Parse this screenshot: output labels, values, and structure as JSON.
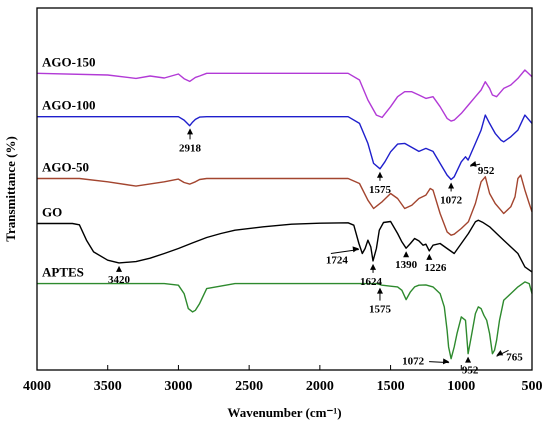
{
  "chart_data": {
    "type": "line",
    "xlabel": "Wavenumber (cm⁻¹)",
    "ylabel": "Transmittance (%)",
    "xlim": [
      4000,
      500
    ],
    "x_reversed": true,
    "x_ticks": [
      4000,
      3500,
      3000,
      2500,
      2000,
      1500,
      1000,
      500
    ],
    "x_tick_labels": [
      "4000",
      "3500",
      "3000",
      "2500",
      "2000",
      "1500",
      "1000",
      "500"
    ],
    "y_ticks_shown": false,
    "legend": "inline labels",
    "series": [
      {
        "name": "AGO-150",
        "color": "#b23ad6",
        "x": [
          4000,
          3500,
          3300,
          3200,
          3100,
          3000,
          2960,
          2920,
          2880,
          2850,
          2800,
          2600,
          2200,
          1800,
          1720,
          1660,
          1600,
          1560,
          1500,
          1450,
          1400,
          1350,
          1300,
          1250,
          1200,
          1150,
          1100,
          1072,
          1050,
          1000,
          950,
          900,
          860,
          830,
          800,
          780,
          750,
          720,
          700,
          650,
          600,
          550,
          500
        ],
        "y": [
          68,
          67.5,
          66.5,
          67.2,
          66.6,
          67.8,
          66.4,
          65.6,
          66.8,
          67.2,
          68,
          68,
          68,
          68,
          66,
          60,
          55.5,
          54.8,
          58,
          61,
          62.5,
          62.5,
          61.5,
          60.5,
          61,
          58,
          54.5,
          53.7,
          54,
          56,
          58.5,
          61,
          63,
          65.5,
          63.5,
          61.5,
          61,
          62.5,
          63.5,
          64.5,
          66.5,
          69,
          67
        ]
      },
      {
        "name": "AGO-100",
        "color": "#1f1fcc",
        "x": [
          4000,
          3500,
          3200,
          3000,
          2960,
          2920,
          2900,
          2880,
          2850,
          2800,
          2600,
          2200,
          1800,
          1720,
          1660,
          1620,
          1575,
          1540,
          1500,
          1450,
          1400,
          1350,
          1300,
          1250,
          1200,
          1150,
          1100,
          1072,
          1050,
          1000,
          970,
          952,
          900,
          860,
          830,
          800,
          760,
          720,
          700,
          650,
          600,
          550,
          500
        ],
        "y": [
          55,
          55,
          55,
          55,
          54,
          52.3,
          53.4,
          54.2,
          54.9,
          55,
          55,
          55,
          55,
          53,
          47,
          41,
          39.4,
          41.5,
          44.5,
          46.8,
          47,
          45.8,
          44.6,
          45.5,
          44.6,
          41,
          37.5,
          36.2,
          37,
          41.5,
          43,
          42,
          47,
          51,
          55.5,
          53,
          50,
          48,
          47.5,
          49,
          51,
          55.5,
          53
        ]
      },
      {
        "name": "AGO-50",
        "color": "#a3452f",
        "x": [
          4000,
          3700,
          3500,
          3300,
          3100,
          3000,
          2960,
          2920,
          2880,
          2850,
          2800,
          2600,
          2200,
          1800,
          1720,
          1660,
          1620,
          1590,
          1560,
          1500,
          1450,
          1400,
          1350,
          1300,
          1250,
          1220,
          1200,
          1150,
          1100,
          1072,
          1050,
          1000,
          950,
          900,
          860,
          830,
          800,
          760,
          720,
          700,
          650,
          620,
          600,
          580,
          550,
          520,
          500
        ],
        "y": [
          36.5,
          36.5,
          35.5,
          34.2,
          35.5,
          36.3,
          35.3,
          34.8,
          35.5,
          36.2,
          36.5,
          36.5,
          36.5,
          36.5,
          35,
          30,
          27.5,
          28.5,
          29.5,
          32,
          30.5,
          27.5,
          28.5,
          30.5,
          31.5,
          33.5,
          33,
          26,
          20.5,
          19.5,
          19.8,
          21.5,
          23.5,
          29,
          35.5,
          37,
          32,
          29,
          27,
          26,
          28,
          31,
          36.5,
          37.5,
          33,
          29,
          26.5
        ]
      },
      {
        "name": "GO",
        "color": "#000000",
        "x": [
          4000,
          3750,
          3700,
          3650,
          3600,
          3500,
          3420,
          3300,
          3200,
          3100,
          3000,
          2900,
          2800,
          2700,
          2600,
          2400,
          2200,
          2000,
          1800,
          1760,
          1724,
          1700,
          1680,
          1660,
          1640,
          1624,
          1600,
          1580,
          1550,
          1500,
          1450,
          1420,
          1390,
          1360,
          1330,
          1300,
          1270,
          1250,
          1226,
          1200,
          1150,
          1100,
          1050,
          1000,
          950,
          900,
          880,
          850,
          800,
          750,
          700,
          650,
          600,
          550,
          500
        ],
        "y": [
          23,
          23,
          22.6,
          18,
          14.5,
          12,
          11.2,
          11.6,
          12.6,
          14,
          15.5,
          17.2,
          18.8,
          20,
          21,
          22,
          22.8,
          23.1,
          23.2,
          22.5,
          17,
          14,
          15.5,
          18,
          16,
          11.8,
          15.5,
          21,
          23.3,
          23.6,
          20,
          17.5,
          15.6,
          17,
          18.5,
          17.8,
          16.5,
          16.8,
          14.8,
          16.5,
          17,
          15.5,
          14,
          17,
          20,
          23.5,
          24,
          23.4,
          22,
          20,
          18,
          16,
          14,
          10,
          8.5
        ]
      },
      {
        "name": "APTES",
        "color": "#2e8a2e",
        "x": [
          4000,
          3500,
          3100,
          3000,
          2960,
          2930,
          2900,
          2880,
          2850,
          2800,
          2600,
          2200,
          1800,
          1600,
          1575,
          1560,
          1500,
          1450,
          1420,
          1390,
          1360,
          1330,
          1300,
          1250,
          1200,
          1150,
          1120,
          1100,
          1090,
          1072,
          1050,
          1030,
          1000,
          970,
          952,
          930,
          900,
          880,
          860,
          840,
          820,
          800,
          780,
          765,
          750,
          730,
          700,
          650,
          600,
          550,
          520,
          500
        ],
        "y": [
          5,
          5,
          5,
          4.5,
          2,
          -2.5,
          -3.5,
          -3,
          -1,
          3.5,
          5,
          5,
          5,
          5,
          4.7,
          4.5,
          4.2,
          4,
          3,
          0.2,
          2.5,
          4,
          4.5,
          4.6,
          4,
          2,
          -2,
          -9,
          -14,
          -17.5,
          -14,
          -10,
          -5,
          -6,
          -16,
          -11,
          -4,
          -2,
          -2.5,
          -4.5,
          -6,
          -10,
          -16,
          -15,
          -12,
          -6,
          0,
          2,
          4,
          5.5,
          5,
          2
        ]
      }
    ],
    "labels": [
      {
        "series": "AGO-150",
        "text": "AGO-150"
      },
      {
        "series": "AGO-100",
        "text": "AGO-100"
      },
      {
        "series": "AGO-50",
        "text": "AGO-50"
      },
      {
        "series": "GO",
        "text": "GO"
      },
      {
        "series": "APTES",
        "text": "APTES"
      }
    ],
    "annotations": [
      {
        "text": "2918",
        "series": "AGO-100",
        "x": 2918
      },
      {
        "text": "1575",
        "series": "AGO-100",
        "x": 1575
      },
      {
        "text": "1072",
        "series": "AGO-100",
        "x": 1072
      },
      {
        "text": "952",
        "series": "AGO-100",
        "x": 952
      },
      {
        "text": "3420",
        "series": "GO",
        "x": 3420
      },
      {
        "text": "1724",
        "series": "GO",
        "x": 1724
      },
      {
        "text": "1624",
        "series": "GO",
        "x": 1624
      },
      {
        "text": "1390",
        "series": "GO",
        "x": 1390
      },
      {
        "text": "1226",
        "series": "GO",
        "x": 1226
      },
      {
        "text": "1575",
        "series": "APTES",
        "x": 1575
      },
      {
        "text": "1072",
        "series": "APTES",
        "x": 1072
      },
      {
        "text": "952",
        "series": "APTES",
        "x": 952
      },
      {
        "text": "765",
        "series": "APTES",
        "x": 765
      }
    ]
  }
}
